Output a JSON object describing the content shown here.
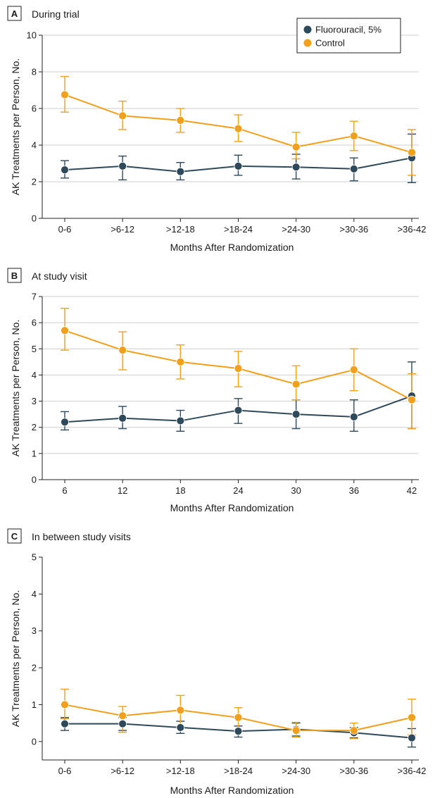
{
  "colors": {
    "fluorouracil": "#2e4a5a",
    "control": "#f0a01c"
  },
  "legend": {
    "series": [
      "Fluorouracil, 5%",
      "Control"
    ]
  },
  "chart_data": [
    {
      "type": "line",
      "panel_letter": "A",
      "title": "During trial",
      "xlabel": "Months After Randomization",
      "ylabel": "AK Treatments per Person, No.",
      "categories": [
        "0-6",
        ">6-12",
        ">12-18",
        ">18-24",
        ">24-30",
        ">30-36",
        ">36-42"
      ],
      "ylim": [
        0,
        10
      ],
      "yticks": [
        0,
        2,
        4,
        6,
        8,
        10
      ],
      "grid": true,
      "legend": "top-right",
      "series": [
        {
          "name": "Fluorouracil, 5%",
          "values": [
            2.65,
            2.85,
            2.55,
            2.85,
            2.8,
            2.7,
            3.3
          ],
          "lower": [
            2.2,
            2.1,
            2.1,
            2.35,
            2.15,
            2.05,
            1.95
          ],
          "upper": [
            3.15,
            3.4,
            3.05,
            3.45,
            3.5,
            3.3,
            4.6
          ]
        },
        {
          "name": "Control",
          "values": [
            6.75,
            5.6,
            5.35,
            4.9,
            3.9,
            4.5,
            3.6
          ],
          "lower": [
            5.8,
            4.85,
            4.7,
            4.2,
            3.25,
            3.7,
            2.35
          ],
          "upper": [
            7.75,
            6.4,
            6.0,
            5.65,
            4.7,
            5.3,
            4.85
          ]
        }
      ]
    },
    {
      "type": "line",
      "panel_letter": "B",
      "title": "At study visit",
      "xlabel": "Months After Randomization",
      "ylabel": "AK Treatments per Person, No.",
      "categories": [
        "6",
        "12",
        "18",
        "24",
        "30",
        "36",
        "42"
      ],
      "ylim": [
        0,
        7
      ],
      "yticks": [
        0,
        1,
        2,
        3,
        4,
        5,
        6,
        7
      ],
      "grid": true,
      "series": [
        {
          "name": "Fluorouracil, 5%",
          "values": [
            2.2,
            2.35,
            2.25,
            2.65,
            2.5,
            2.4,
            3.2
          ],
          "lower": [
            1.9,
            1.95,
            1.85,
            2.15,
            1.95,
            1.85,
            1.95
          ],
          "upper": [
            2.6,
            2.8,
            2.65,
            3.1,
            3.05,
            3.05,
            4.5
          ]
        },
        {
          "name": "Control",
          "values": [
            5.7,
            4.95,
            4.5,
            4.25,
            3.65,
            4.2,
            3.05
          ],
          "lower": [
            4.95,
            4.2,
            3.85,
            3.55,
            3.05,
            3.4,
            1.95
          ],
          "upper": [
            6.55,
            5.65,
            5.15,
            4.9,
            4.35,
            5.0,
            4.05
          ]
        }
      ]
    },
    {
      "type": "line",
      "panel_letter": "C",
      "title": "In between study visits",
      "xlabel": "Months After Randomization",
      "ylabel": "AK Treatments per Person, No.",
      "categories": [
        "0-6",
        ">6-12",
        ">12-18",
        ">18-24",
        ">24-30",
        ">30-36",
        ">36-42"
      ],
      "ylim": [
        -0.5,
        5
      ],
      "yticks": [
        0,
        1,
        2,
        3,
        4,
        5
      ],
      "grid": false,
      "series": [
        {
          "name": "Fluorouracil, 5%",
          "values": [
            0.48,
            0.48,
            0.38,
            0.28,
            0.33,
            0.24,
            0.1
          ],
          "lower": [
            0.3,
            0.3,
            0.22,
            0.12,
            0.15,
            0.1,
            -0.15
          ],
          "upper": [
            0.65,
            0.65,
            0.55,
            0.42,
            0.5,
            0.38,
            0.35
          ]
        },
        {
          "name": "Control",
          "values": [
            1.0,
            0.7,
            0.85,
            0.65,
            0.3,
            0.3,
            0.65
          ],
          "lower": [
            0.62,
            0.25,
            0.4,
            0.3,
            0.12,
            0.08,
            0.18
          ],
          "upper": [
            1.42,
            0.95,
            1.25,
            0.92,
            0.52,
            0.5,
            1.15
          ]
        }
      ]
    }
  ]
}
